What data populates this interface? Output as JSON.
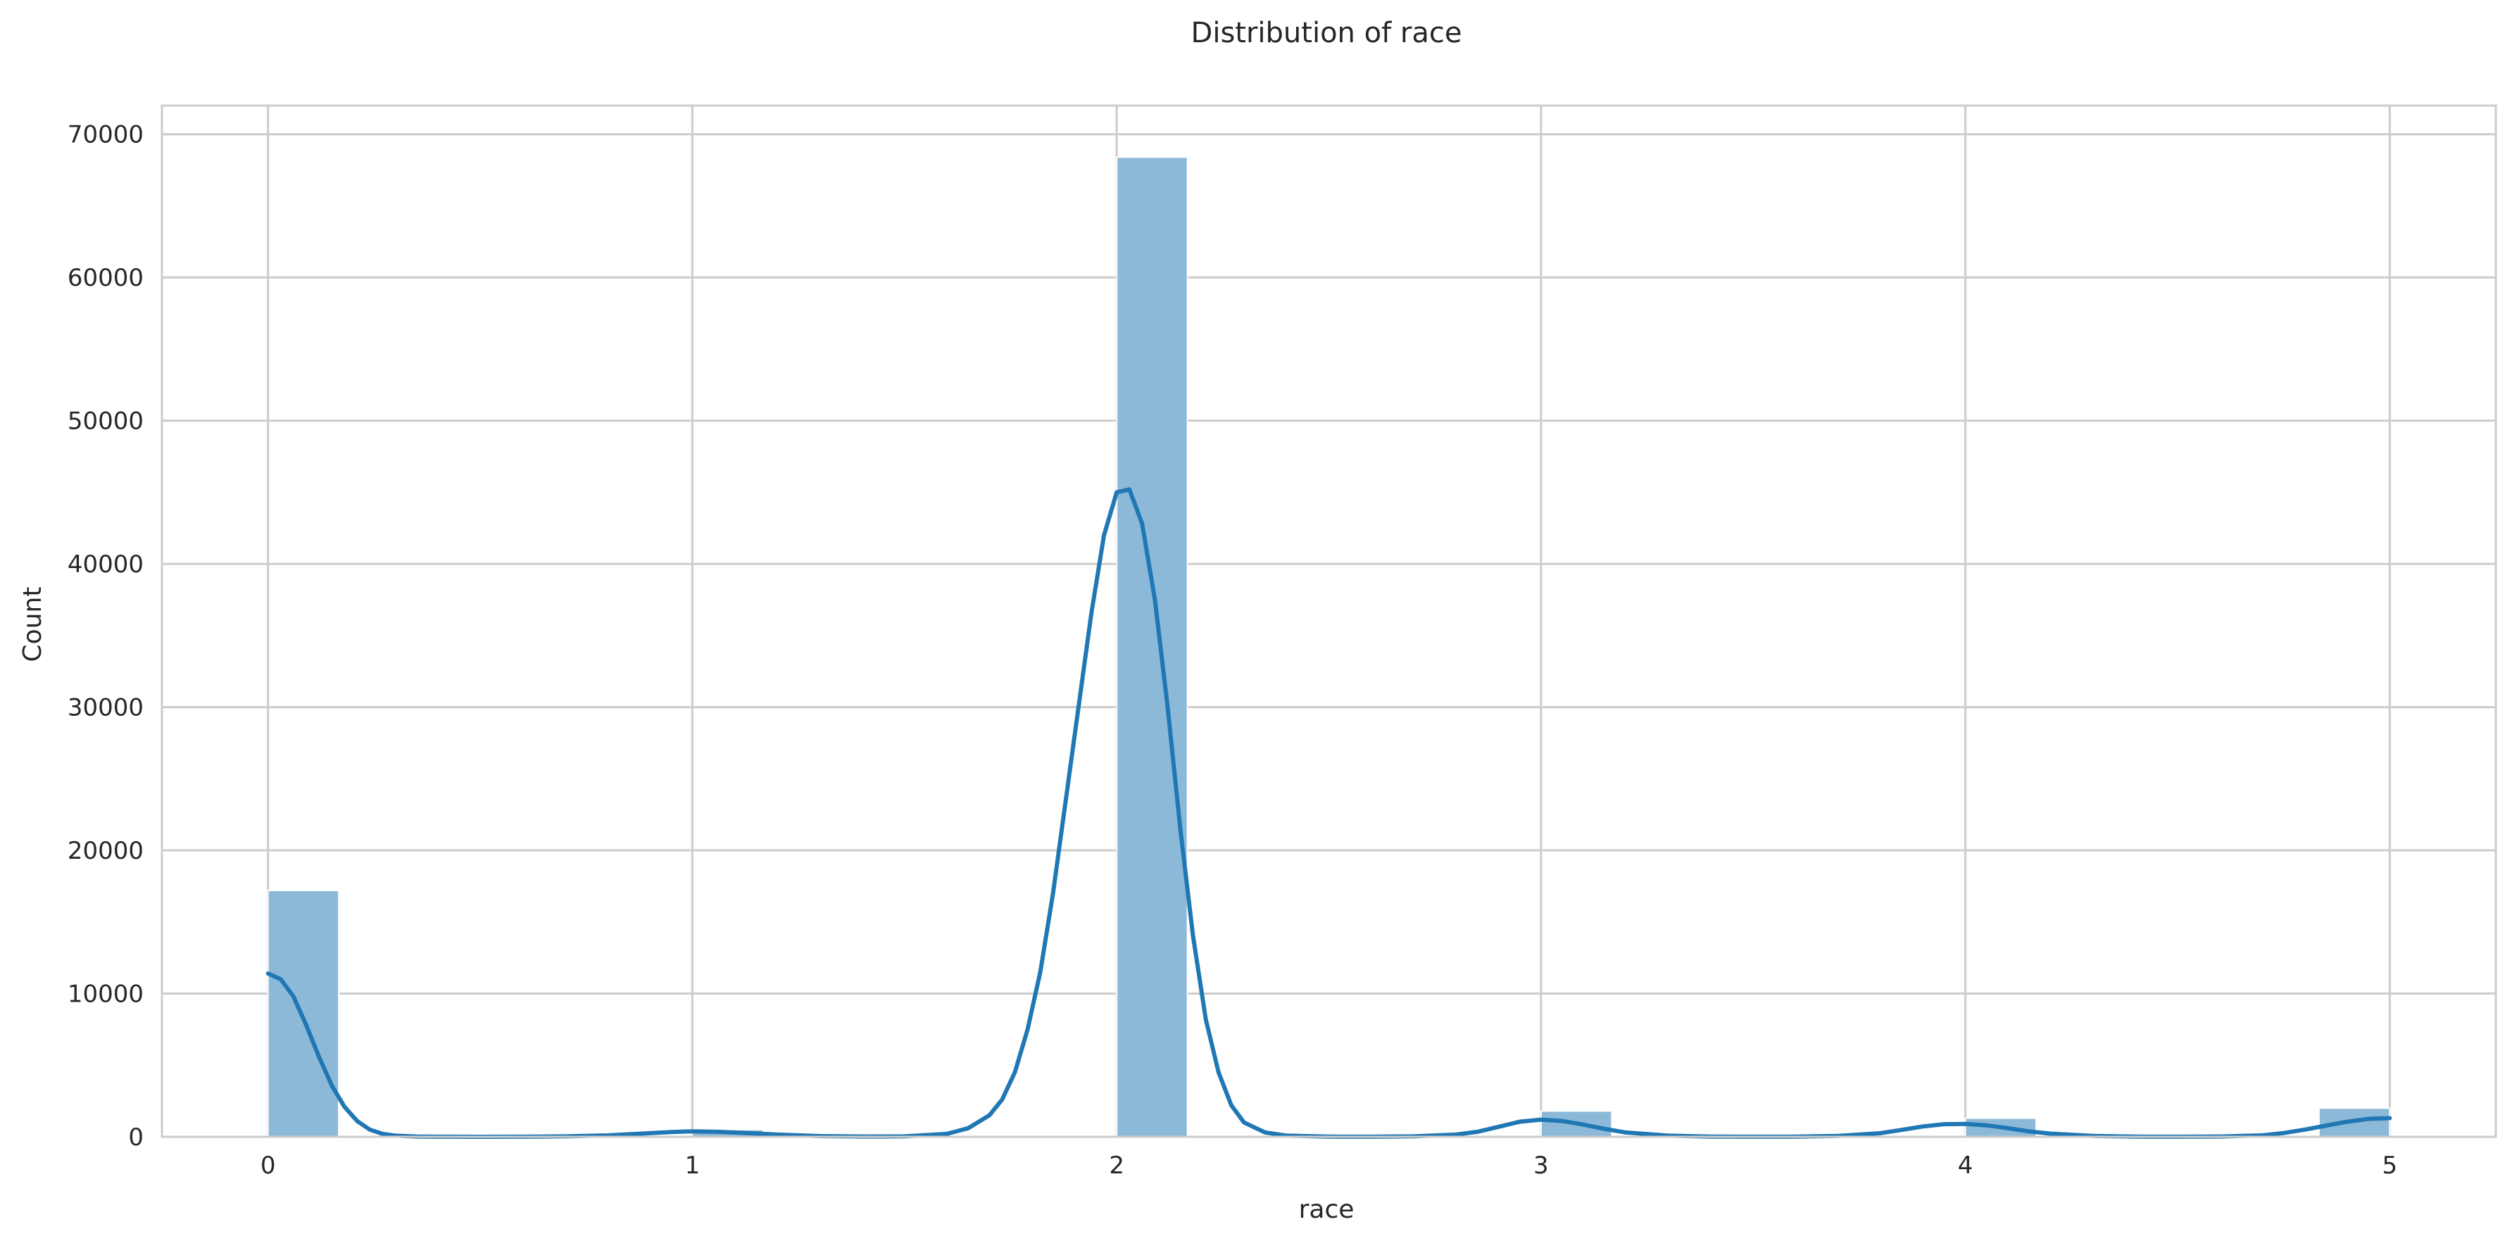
{
  "chart_data": {
    "type": "bar",
    "title": "Distribution of race",
    "xlabel": "race",
    "ylabel": "Count",
    "xlim": [
      -0.25,
      5.25
    ],
    "ylim": [
      0,
      72000
    ],
    "xticks": [
      0,
      1,
      2,
      3,
      4,
      5
    ],
    "xtick_labels": [
      "0",
      "1",
      "2",
      "3",
      "4",
      "5"
    ],
    "yticks": [
      0,
      10000,
      20000,
      30000,
      40000,
      50000,
      60000,
      70000
    ],
    "ytick_labels": [
      "0",
      "10000",
      "20000",
      "30000",
      "40000",
      "50000",
      "60000",
      "70000"
    ],
    "grid": true,
    "bin_width": 0.1667,
    "bins": [
      {
        "x0": 0.0,
        "x1": 0.1667,
        "count": 17200
      },
      {
        "x0": 1.0,
        "x1": 1.1667,
        "count": 500
      },
      {
        "x0": 2.0,
        "x1": 2.1667,
        "count": 68400
      },
      {
        "x0": 3.0,
        "x1": 3.1667,
        "count": 1800
      },
      {
        "x0": 4.0,
        "x1": 4.1667,
        "count": 1300
      },
      {
        "x0": 4.8333,
        "x1": 5.0,
        "count": 2000
      }
    ],
    "kde": {
      "x": [
        0.0,
        0.03,
        0.06,
        0.09,
        0.12,
        0.15,
        0.18,
        0.21,
        0.24,
        0.27,
        0.3,
        0.35,
        0.4,
        0.5,
        0.6,
        0.7,
        0.8,
        0.9,
        0.95,
        1.0,
        1.05,
        1.1,
        1.2,
        1.3,
        1.4,
        1.5,
        1.6,
        1.65,
        1.7,
        1.73,
        1.76,
        1.79,
        1.82,
        1.85,
        1.88,
        1.91,
        1.94,
        1.97,
        2.0,
        2.03,
        2.06,
        2.09,
        2.12,
        2.15,
        2.18,
        2.21,
        2.24,
        2.27,
        2.3,
        2.35,
        2.4,
        2.5,
        2.6,
        2.7,
        2.8,
        2.85,
        2.9,
        2.95,
        3.0,
        3.05,
        3.1,
        3.15,
        3.2,
        3.3,
        3.4,
        3.5,
        3.6,
        3.7,
        3.8,
        3.85,
        3.9,
        3.95,
        4.0,
        4.05,
        4.1,
        4.15,
        4.2,
        4.3,
        4.4,
        4.5,
        4.6,
        4.7,
        4.75,
        4.8,
        4.85,
        4.9,
        4.95,
        5.0
      ],
      "y": [
        11400,
        11000,
        9800,
        7800,
        5600,
        3600,
        2100,
        1100,
        500,
        200,
        80,
        20,
        5,
        2,
        5,
        30,
        100,
        250,
        330,
        380,
        360,
        300,
        150,
        50,
        20,
        30,
        200,
        600,
        1500,
        2600,
        4500,
        7500,
        11500,
        17000,
        23500,
        30000,
        36500,
        42000,
        45000,
        45200,
        42800,
        37500,
        30000,
        21500,
        14000,
        8200,
        4500,
        2200,
        1000,
        300,
        80,
        10,
        5,
        30,
        150,
        350,
        700,
        1050,
        1200,
        1100,
        850,
        550,
        300,
        80,
        15,
        5,
        10,
        60,
        250,
        480,
        720,
        880,
        900,
        800,
        600,
        380,
        220,
        60,
        10,
        5,
        20,
        100,
        260,
        500,
        780,
        1050,
        1250,
        1300
      ]
    },
    "colors": {
      "bar_fill": "#8db9d9",
      "kde_line": "#1f77b4",
      "grid": "#cccccc",
      "spine": "#cccccc",
      "background": "#ffffff"
    }
  }
}
